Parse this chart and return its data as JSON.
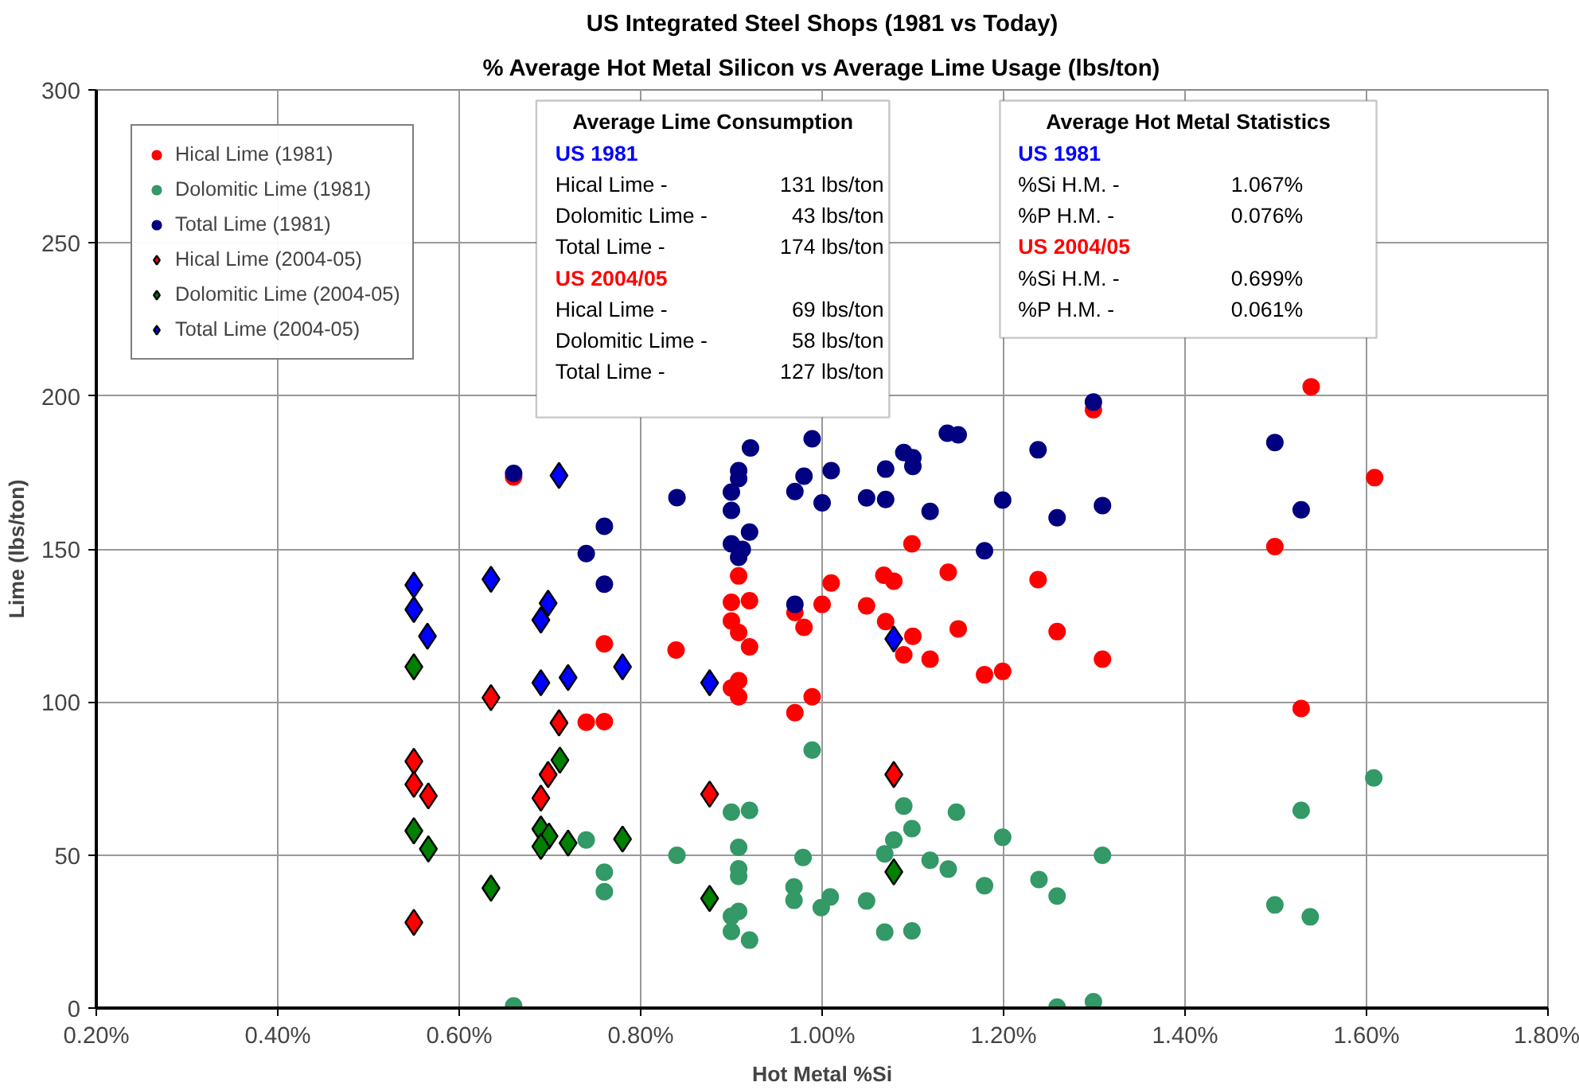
{
  "chart_data": {
    "type": "scatter",
    "title": "US Integrated Steel Shops (1981 vs Today)",
    "subtitle": "% Average Hot Metal Silicon vs Average Lime Usage (lbs/ton)",
    "xlabel": "Hot Metal %Si",
    "ylabel": "Lime (lbs/ton)",
    "xlim": [
      0.2,
      1.8
    ],
    "ylim": [
      0,
      300
    ],
    "xticks": [
      {
        "value": 0.2,
        "label": "0.20%"
      },
      {
        "value": 0.4,
        "label": "0.40%"
      },
      {
        "value": 0.6,
        "label": "0.60%"
      },
      {
        "value": 0.8,
        "label": "0.80%"
      },
      {
        "value": 1.0,
        "label": "1.00%"
      },
      {
        "value": 1.2,
        "label": "1.20%"
      },
      {
        "value": 1.4,
        "label": "1.40%"
      },
      {
        "value": 1.6,
        "label": "1.60%"
      },
      {
        "value": 1.8,
        "label": "1.80%"
      }
    ],
    "yticks": [
      0,
      50,
      100,
      150,
      200,
      250,
      300
    ],
    "grid": true,
    "legend": "top left",
    "series": [
      {
        "name": "Hical Lime (1981)",
        "color": "#ff0000",
        "marker": "circle",
        "x": [
          0.66,
          1.099,
          0.908,
          1.01,
          1.068,
          1.079,
          1.139,
          1.238,
          0.9,
          0.92,
          0.97,
          1.0,
          1.049,
          0.98,
          0.9,
          0.908,
          0.92,
          1.07,
          1.1,
          1.15,
          1.09,
          1.119,
          1.179,
          1.199,
          0.76,
          0.839,
          0.908,
          0.9,
          0.908,
          0.989,
          0.97,
          0.74,
          0.76,
          1.299,
          1.539,
          1.609,
          1.499,
          1.259,
          1.309,
          1.528
        ],
        "values": [
          173.5,
          151.7,
          141.2,
          138.9,
          141.4,
          139.5,
          142.4,
          140,
          132.6,
          133.1,
          129.3,
          131.9,
          131.4,
          124.4,
          126.5,
          122.7,
          118,
          126.3,
          121.5,
          123.9,
          115.4,
          114,
          108.9,
          110,
          119,
          117,
          107,
          104.6,
          101.7,
          101.7,
          96.5,
          93.4,
          93.6,
          195.5,
          203,
          173.3,
          150.8,
          123,
          114,
          97.9
        ]
      },
      {
        "name": "Dolomitic Lime (1981)",
        "color": "#339966",
        "marker": "circle",
        "x": [
          0.989,
          1.09,
          1.148,
          1.099,
          1.079,
          1.199,
          1.069,
          0.979,
          1.119,
          1.139,
          1.309,
          1.179,
          1.239,
          1.259,
          0.969,
          0.969,
          1.009,
          0.999,
          1.049,
          1.069,
          1.099,
          1.528,
          1.608,
          1.499,
          1.538,
          1.259,
          1.299,
          0.74,
          0.76,
          0.76,
          0.66,
          0.84,
          0.9,
          0.92,
          0.908,
          0.908,
          0.908,
          0.9,
          0.908,
          0.9,
          0.92
        ],
        "values": [
          84.3,
          66,
          64,
          58.6,
          54.9,
          55.8,
          50.4,
          49.2,
          48.3,
          45.4,
          49.9,
          40,
          42,
          36.6,
          39.6,
          35.2,
          36.3,
          32.8,
          35,
          24.8,
          25.2,
          64.6,
          75.2,
          33.7,
          29.8,
          0.3,
          2.1,
          54.9,
          44.4,
          38,
          0.7,
          49.9,
          64,
          64.6,
          52.5,
          45.5,
          43,
          30,
          31.6,
          25,
          22.2
        ]
      },
      {
        "name": "Total Lime (1981)",
        "color": "#000080",
        "marker": "circle",
        "x": [
          0.66,
          0.921,
          0.989,
          0.908,
          0.908,
          0.98,
          1.01,
          0.84,
          0.9,
          0.9,
          0.97,
          1.0,
          1.049,
          1.07,
          1.07,
          1.09,
          1.1,
          1.1,
          1.138,
          1.15,
          1.238,
          1.119,
          1.199,
          0.76,
          0.74,
          0.76,
          0.92,
          0.9,
          0.912,
          0.908,
          1.179,
          0.97,
          1.299,
          1.259,
          1.309,
          1.499,
          1.528
        ],
        "values": [
          174.7,
          183,
          186,
          175.6,
          173,
          173.8,
          175.6,
          166.8,
          168.6,
          162.6,
          168.8,
          165.1,
          166.7,
          166.2,
          176.1,
          181.5,
          179.8,
          177,
          187.8,
          187.3,
          182.4,
          162.3,
          166,
          157.4,
          148.5,
          138.5,
          155.5,
          151.7,
          149.9,
          147.3,
          149.4,
          131.9,
          198,
          160.2,
          164.2,
          184.8,
          162.8
        ]
      },
      {
        "name": "Hical Lime (2004-05)",
        "color": "#ff0000",
        "marker": "diamond",
        "x": [
          0.635,
          0.71,
          0.55,
          0.698,
          0.55,
          0.566,
          0.69,
          0.876,
          1.079,
          0.55
        ],
        "values": [
          101.4,
          93.2,
          80.6,
          76.3,
          73.1,
          69.3,
          68.6,
          69.9,
          76.3,
          28
        ]
      },
      {
        "name": "Dolomitic Lime (2004-05)",
        "color": "#008000",
        "marker": "diamond",
        "x": [
          0.55,
          0.711,
          0.55,
          0.566,
          0.69,
          0.699,
          0.69,
          0.72,
          0.78,
          0.635,
          0.876,
          1.079
        ],
        "values": [
          111.5,
          81,
          57.9,
          52,
          58.5,
          56.2,
          52.8,
          53.9,
          55.2,
          39.2,
          35.8,
          44.5
        ]
      },
      {
        "name": "Total Lime (2004-05)",
        "color": "#0000ff",
        "marker": "diamond",
        "x": [
          0.55,
          0.55,
          0.565,
          0.635,
          0.698,
          0.69,
          0.69,
          0.72,
          0.78,
          0.876,
          1.079,
          0.71
        ],
        "values": [
          138.2,
          130.2,
          121.5,
          140.1,
          132.3,
          126.8,
          106.3,
          108,
          111.5,
          106.3,
          120.6,
          174
        ]
      }
    ],
    "annotations": [
      "Average Lime Consumption",
      "US 1981",
      "Hical Lime - 131 lbs/ton",
      "Dolomitic Lime - 43 lbs/ton",
      "Total Lime - 174 lbs/ton",
      "US 2004/05",
      "Hical Lime - 69 lbs/ton",
      "Dolomitic Lime - 58 lbs/ton",
      "Total Lime - 127 lbs/ton",
      "Average Hot Metal Statistics",
      "US 1981",
      "%Si H.M. - 1.067%",
      "%P  H.M. - 0.076%",
      "US 2004/05",
      "%Si H.M. - 0.699%",
      "%P  H.M. - 0.061%"
    ]
  }
}
